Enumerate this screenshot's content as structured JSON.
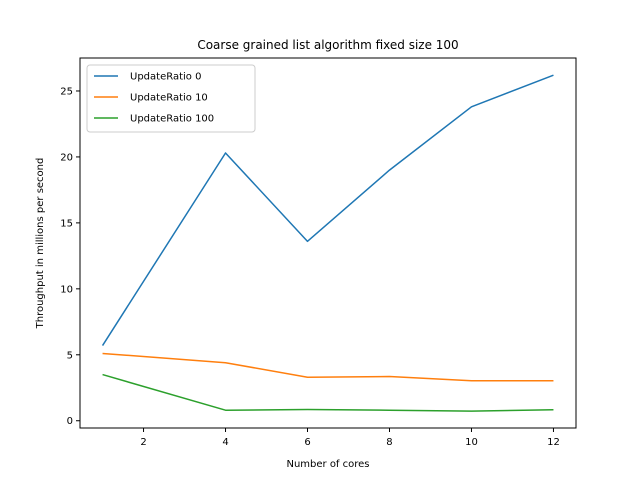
{
  "chart_data": {
    "type": "line",
    "title": "Coarse grained list algorithm fixed size 100",
    "xlabel": "Number of cores",
    "ylabel": "Throughput in millions per second",
    "x": [
      1,
      4,
      6,
      8,
      10,
      12
    ],
    "xlim": [
      0.45,
      12.55
    ],
    "ylim": [
      -0.55,
      27.5
    ],
    "xticks": [
      "2",
      "4",
      "6",
      "8",
      "10",
      "12"
    ],
    "yticks": [
      "0",
      "5",
      "10",
      "15",
      "20",
      "25"
    ],
    "grid": false,
    "legend_position": "upper left",
    "series": [
      {
        "name": "UpdateRatio 0",
        "color": "#1f77b4",
        "values": [
          5.7,
          20.3,
          13.6,
          19.0,
          23.8,
          26.2
        ]
      },
      {
        "name": "UpdateRatio 10",
        "color": "#ff7f0e",
        "values": [
          5.1,
          4.4,
          3.3,
          3.35,
          3.03,
          3.03
        ]
      },
      {
        "name": "UpdateRatio 100",
        "color": "#2ca02c",
        "values": [
          3.5,
          0.8,
          0.85,
          0.8,
          0.73,
          0.83
        ]
      }
    ]
  }
}
